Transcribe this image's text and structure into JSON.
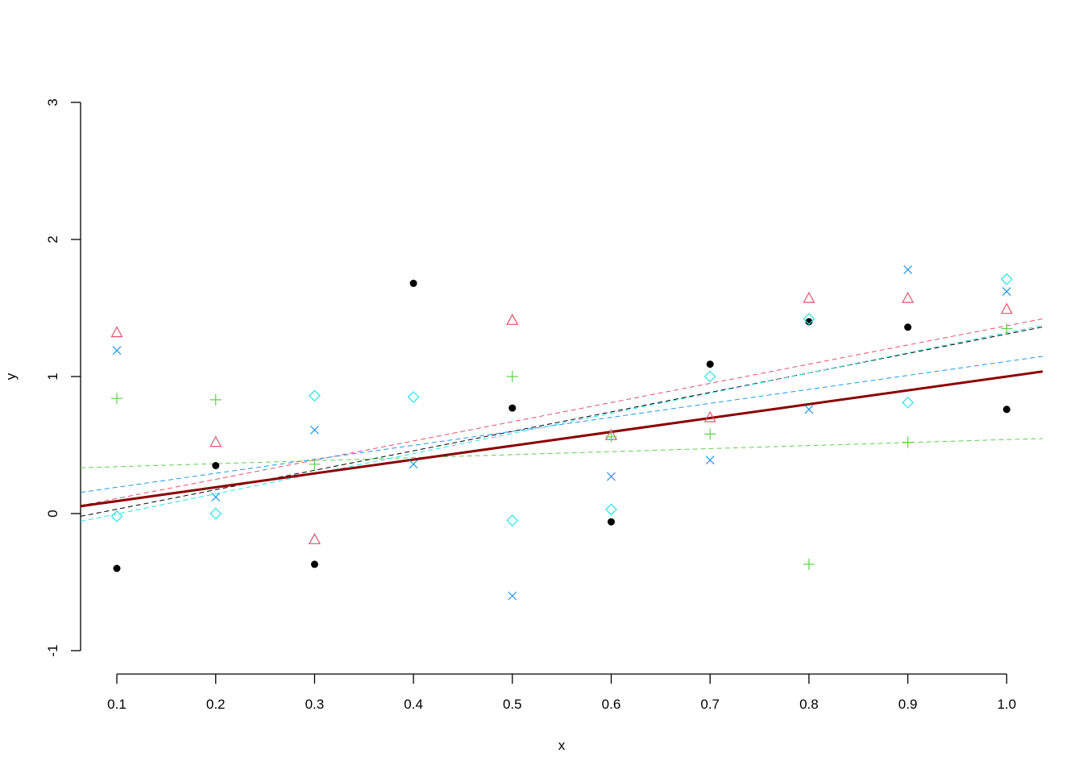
{
  "chart_data": {
    "type": "scatter",
    "xlabel": "x",
    "ylabel": "y",
    "xlim": [
      0.063,
      1.037
    ],
    "ylim": [
      -1,
      3
    ],
    "x_ticks": [
      "0.1",
      "0.2",
      "0.3",
      "0.4",
      "0.5",
      "0.6",
      "0.7",
      "0.8",
      "0.9",
      "1.0"
    ],
    "y_ticks": [
      "-1",
      "0",
      "1",
      "2",
      "3"
    ],
    "x": [
      0.1,
      0.2,
      0.3,
      0.4,
      0.5,
      0.6,
      0.7,
      0.8,
      0.9,
      1.0
    ],
    "series": [
      {
        "marker": "dot",
        "color": "#000000",
        "values": [
          -0.4,
          0.35,
          -0.37,
          1.68,
          0.77,
          -0.06,
          1.09,
          1.4,
          1.36,
          0.76
        ],
        "fit": {
          "intercept": -0.11,
          "slope": 1.42
        }
      },
      {
        "marker": "triangle",
        "color": "#DF536B",
        "values": [
          1.32,
          0.52,
          -0.19,
          null,
          1.41,
          0.57,
          0.7,
          1.57,
          1.57,
          1.49
        ],
        "fit": {
          "intercept": -0.03,
          "slope": 1.4
        }
      },
      {
        "marker": "plus",
        "color": "#61D04F",
        "values": [
          0.84,
          0.83,
          0.36,
          null,
          1.0,
          0.56,
          0.58,
          -0.37,
          0.52,
          1.35
        ],
        "fit": {
          "intercept": 0.32,
          "slope": 0.22
        }
      },
      {
        "marker": "cross",
        "color": "#2297E6",
        "values": [
          1.19,
          0.12,
          0.61,
          0.36,
          -0.6,
          0.27,
          0.39,
          0.76,
          1.78,
          1.62
        ],
        "fit": {
          "intercept": 0.09,
          "slope": 1.02
        }
      },
      {
        "marker": "diamond",
        "color": "#28E2E5",
        "values": [
          -0.02,
          0.0,
          0.86,
          0.85,
          -0.05,
          0.03,
          1.0,
          1.42,
          0.81,
          1.71
        ],
        "fit": {
          "intercept": -0.15,
          "slope": 1.47
        }
      }
    ],
    "overall_fit": {
      "color": "#8B0000",
      "intercept": -0.01,
      "slope": 1.01
    },
    "grid": false,
    "legend": "none"
  }
}
